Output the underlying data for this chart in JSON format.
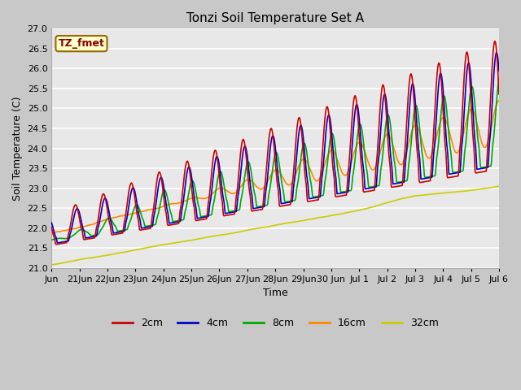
{
  "title": "Tonzi Soil Temperature Set A",
  "xlabel": "Time",
  "ylabel": "Soil Temperature (C)",
  "annotation_text": "TZ_fmet",
  "annotation_bg": "#ffffcc",
  "annotation_border": "#996600",
  "ylim": [
    21.0,
    27.0
  ],
  "yticks": [
    21.0,
    21.5,
    22.0,
    22.5,
    23.0,
    23.5,
    24.0,
    24.5,
    25.0,
    25.5,
    26.0,
    26.5,
    27.0
  ],
  "xtick_labels": [
    "Jun",
    "21Jun",
    "22Jun",
    "23Jun",
    "24Jun",
    "25Jun",
    "26Jun",
    "27Jun",
    "28Jun",
    "29Jun",
    "30 Jun",
    "Jul 1",
    "Jul 2",
    "Jul 3",
    "Jul 4",
    "Jul 5",
    "Jul 6"
  ],
  "xtick_positions": [
    0,
    1,
    2,
    3,
    4,
    5,
    6,
    7,
    8,
    9,
    10,
    11,
    12,
    13,
    14,
    15,
    16
  ],
  "colors": {
    "2cm": "#cc0000",
    "4cm": "#0000cc",
    "8cm": "#00aa00",
    "16cm": "#ff8800",
    "32cm": "#cccc00"
  },
  "linewidth": 1.2,
  "fig_bg_color": "#c8c8c8",
  "plot_bg_color": "#e8e8e8",
  "grid_color": "#ffffff",
  "legend_entries": [
    "2cm",
    "4cm",
    "8cm",
    "16cm",
    "32cm"
  ]
}
